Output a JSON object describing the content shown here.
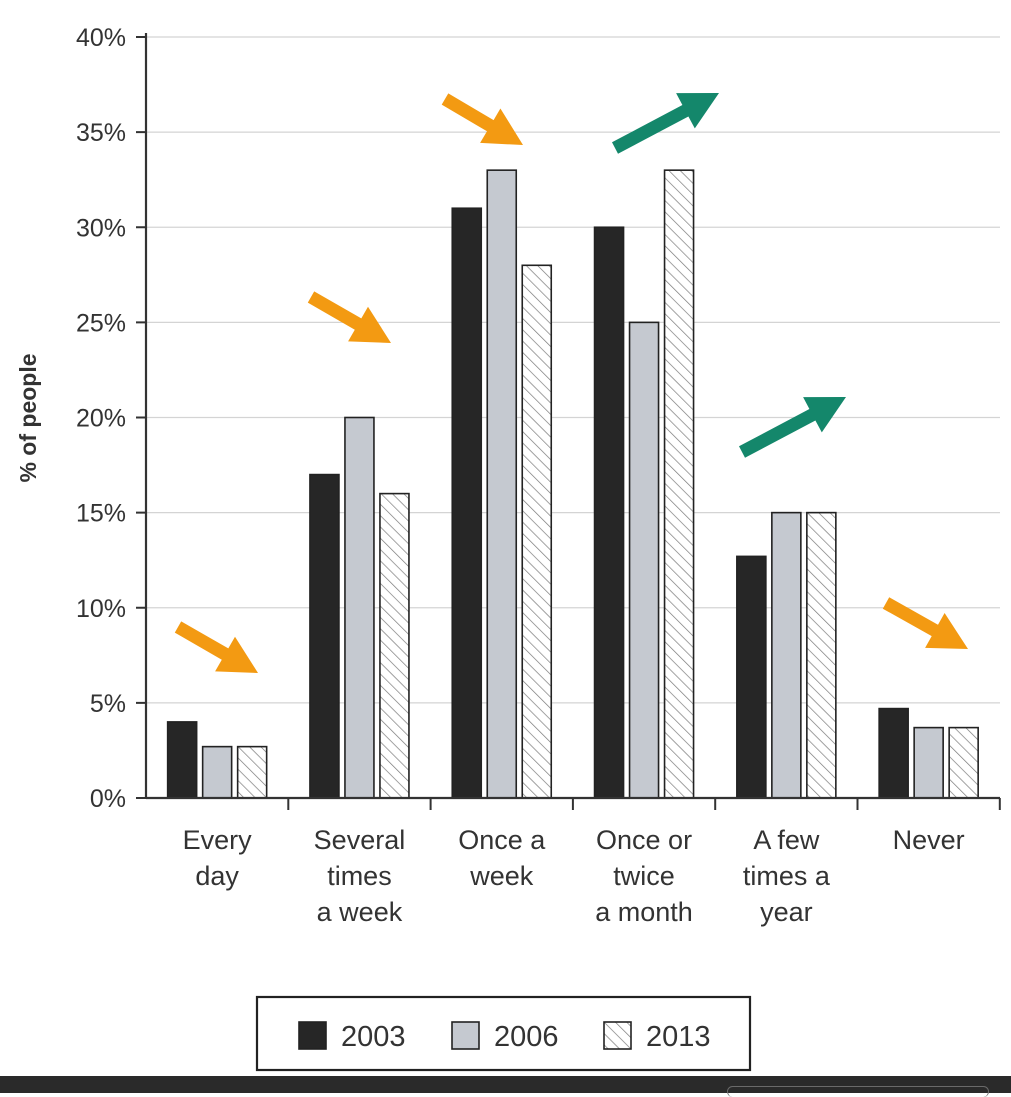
{
  "chart_data": {
    "type": "bar",
    "ylabel": "% of people",
    "xlabel": "",
    "ylim": [
      0,
      40
    ],
    "yticks": [
      0,
      5,
      10,
      15,
      20,
      25,
      30,
      35,
      40
    ],
    "ytick_labels": [
      "0%",
      "5%",
      "10%",
      "15%",
      "20%",
      "25%",
      "30%",
      "35%",
      "40%"
    ],
    "grid": true,
    "legend_position": "bottom-center",
    "categories": [
      [
        "Every",
        "day"
      ],
      [
        "Several",
        "times",
        "a week"
      ],
      [
        "Once a",
        "week"
      ],
      [
        "Once or",
        "twice",
        "a month"
      ],
      [
        "A few",
        "times a",
        "year"
      ],
      [
        "Never"
      ]
    ],
    "series": [
      {
        "name": "2003",
        "fill": "solid-black",
        "values": [
          4,
          17,
          31,
          30,
          12.7,
          4.7
        ]
      },
      {
        "name": "2006",
        "fill": "light-grey",
        "values": [
          2.7,
          20,
          33,
          25,
          15,
          3.7
        ]
      },
      {
        "name": "2013",
        "fill": "hatched",
        "values": [
          2.7,
          16,
          28,
          33,
          15,
          3.7
        ]
      }
    ],
    "trend_arrows": [
      {
        "category": "Every day",
        "direction": "down",
        "color": "#f39a12"
      },
      {
        "category": "Several times a week",
        "direction": "down",
        "color": "#f39a12"
      },
      {
        "category": "Once a week",
        "direction": "down",
        "color": "#f39a12"
      },
      {
        "category": "Once or twice a month",
        "direction": "up",
        "color": "#14876b"
      },
      {
        "category": "A few times a year",
        "direction": "up",
        "color": "#14876b"
      },
      {
        "category": "Never",
        "direction": "down",
        "color": "#f39a12"
      }
    ],
    "colors": {
      "series_2003": "#262626",
      "series_2006": "#c5c9d0",
      "series_2013_bg": "#ffffff",
      "hatch": "#7a7a7a",
      "grid": "#d4d4d4",
      "axis": "#333333",
      "text": "#333333"
    }
  }
}
